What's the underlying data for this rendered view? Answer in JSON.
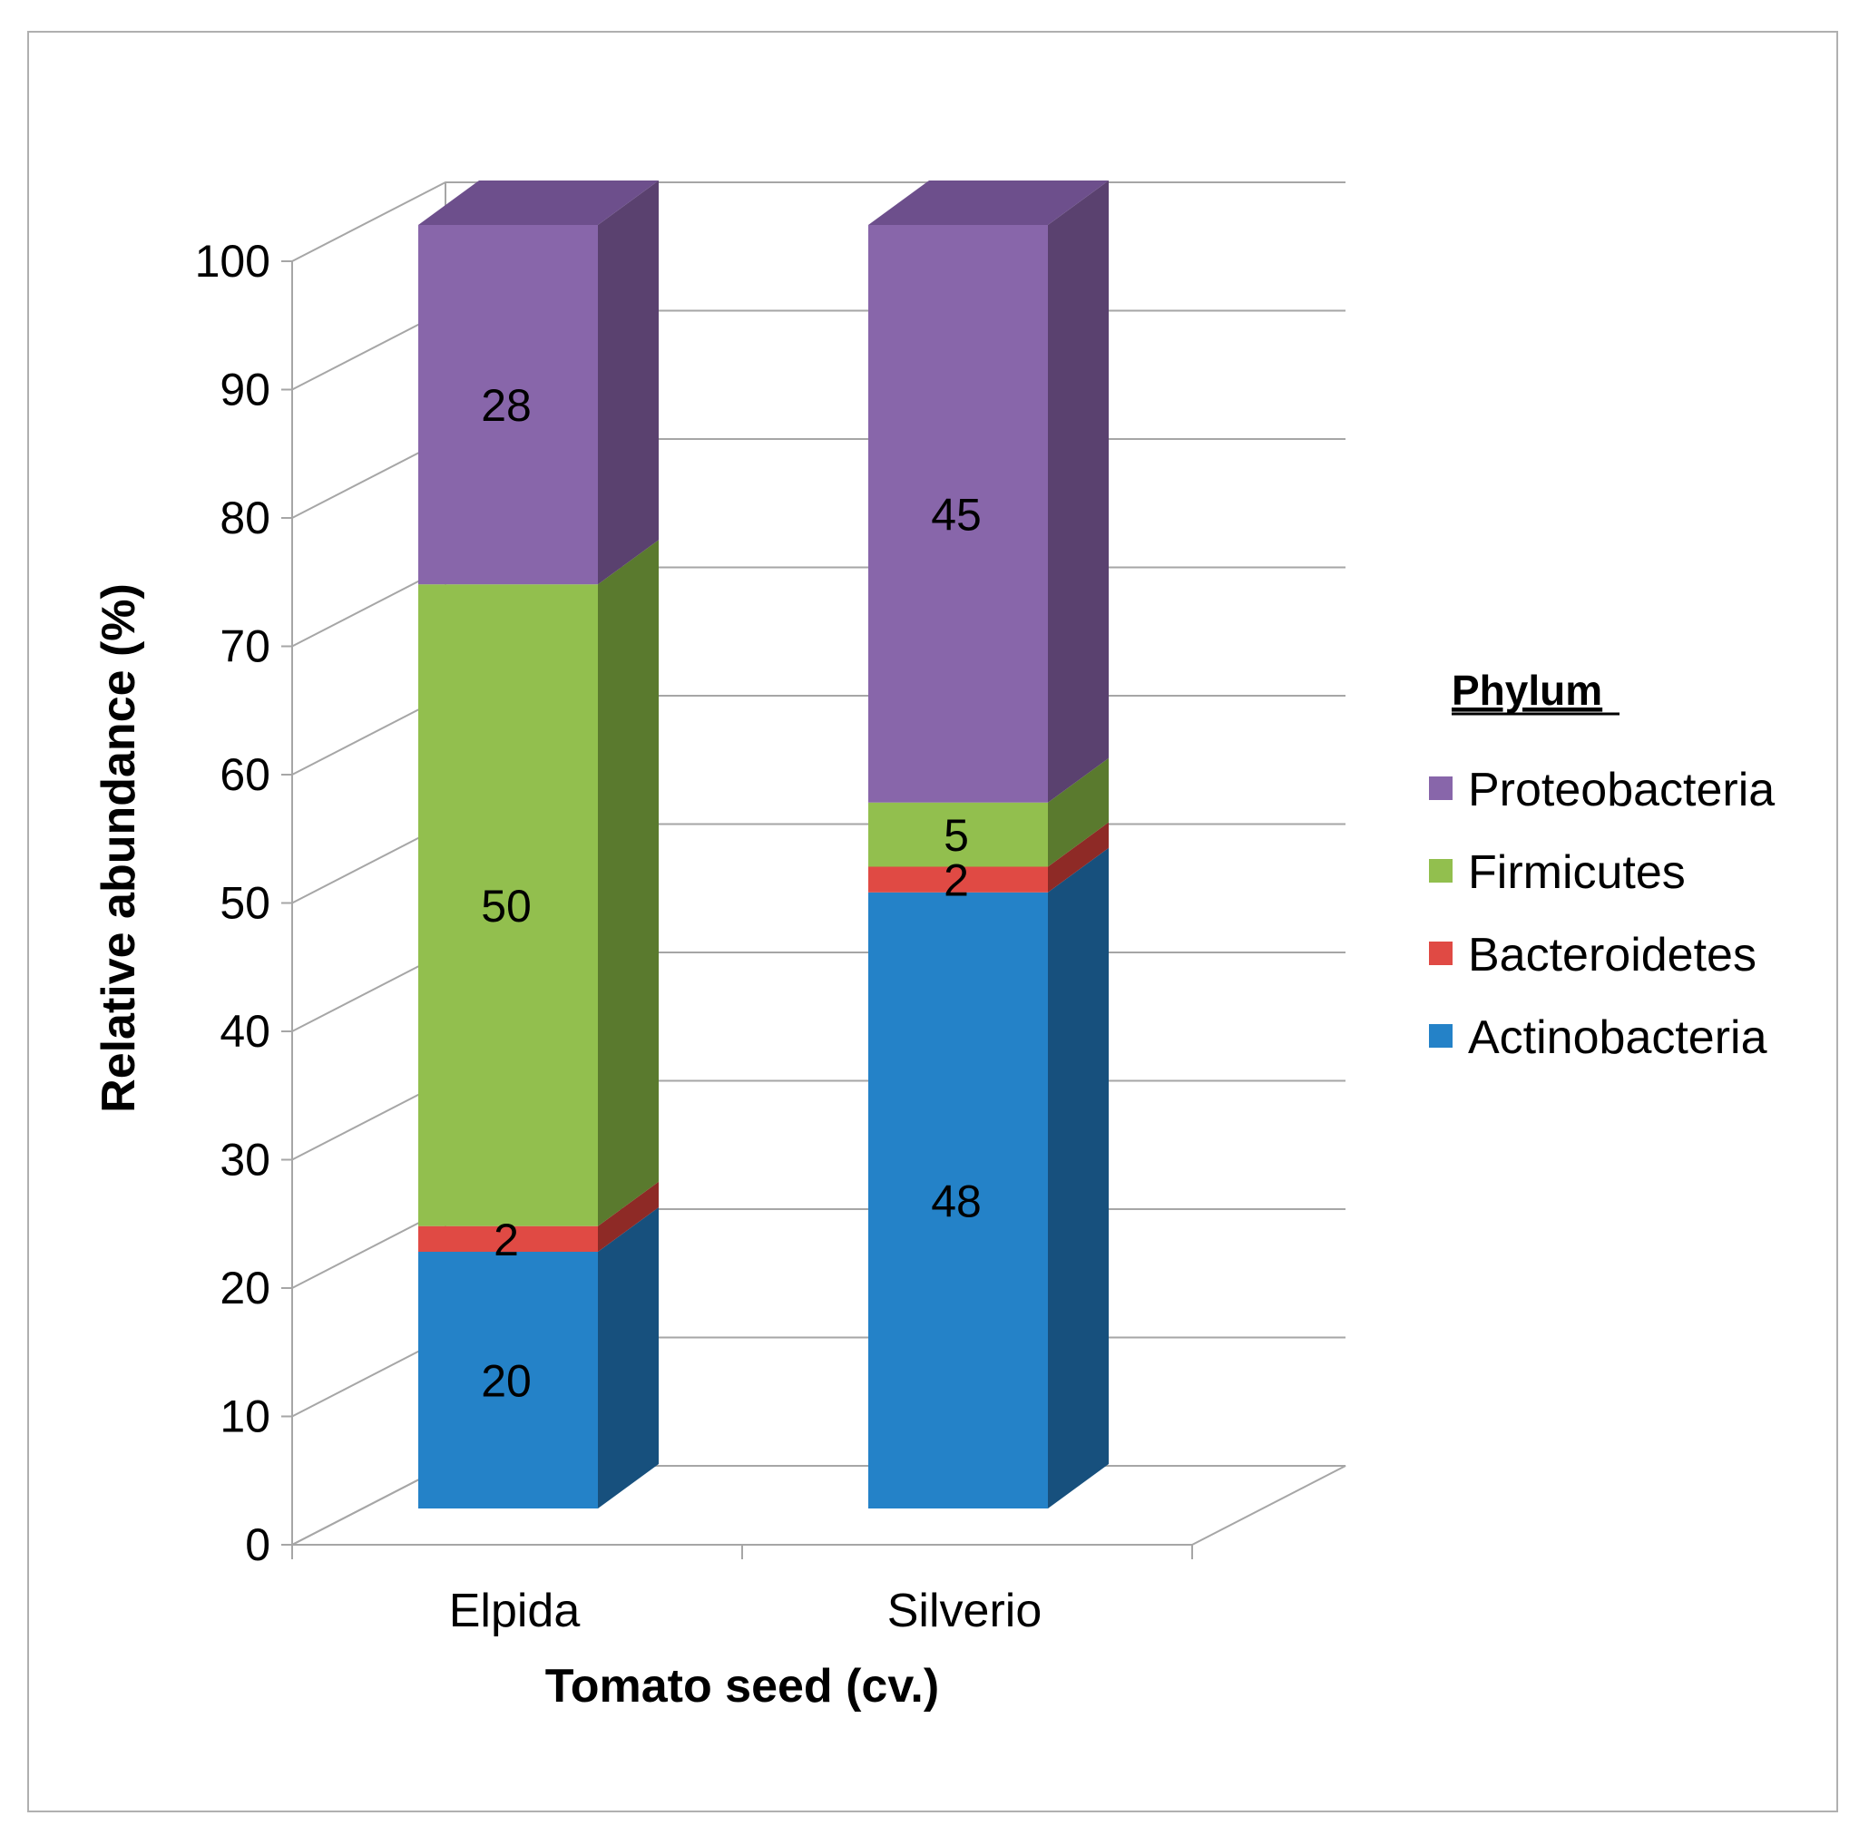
{
  "chart_data": {
    "type": "bar",
    "stacked": true,
    "three_d": true,
    "categories": [
      "Elpida",
      "Silverio"
    ],
    "series": [
      {
        "name": "Actinobacteria",
        "values": [
          20,
          48
        ],
        "color": "#2482C8",
        "side_color": "#17507D",
        "top_color": "#1E6BA6"
      },
      {
        "name": "Bacteroidetes",
        "values": [
          2,
          2
        ],
        "color": "#E04A44",
        "side_color": "#8E2A26",
        "top_color": "#B83B36"
      },
      {
        "name": "Firmicutes",
        "values": [
          50,
          5
        ],
        "color": "#92BF4E",
        "side_color": "#5A7A2E",
        "top_color": "#78A03E"
      },
      {
        "name": "Proteobacteria",
        "values": [
          28,
          45
        ],
        "color": "#8866AA",
        "side_color": "#5A416F",
        "top_color": "#6D4F8C"
      }
    ],
    "xlabel": "Tomato seed (cv.)",
    "ylabel": "Relative abundance (%)",
    "ylim": [
      0,
      100
    ],
    "yticks": [
      0,
      10,
      20,
      30,
      40,
      50,
      60,
      70,
      80,
      90,
      100
    ],
    "grid": true,
    "legend": {
      "title": "Phylum",
      "placement": "right",
      "order": [
        "Proteobacteria",
        "Firmicutes",
        "Bacteroidetes",
        "Actinobacteria"
      ]
    }
  }
}
